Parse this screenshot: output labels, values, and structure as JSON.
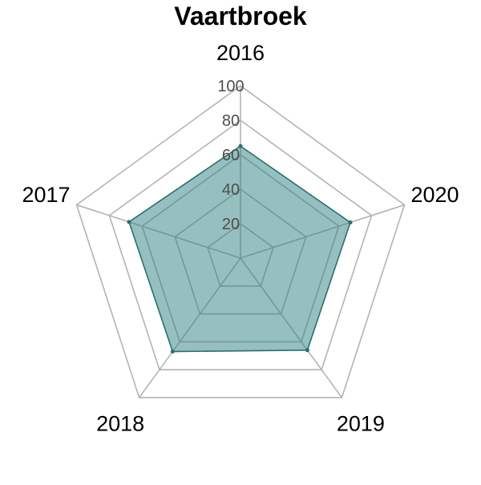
{
  "chart_data": {
    "type": "radar",
    "title": "Vaartbroek",
    "categories": [
      "2016",
      "2020",
      "2019",
      "2018",
      "2017"
    ],
    "values": [
      65,
      67,
      66,
      67,
      68
    ],
    "radial_ticks": [
      "20",
      "40",
      "60",
      "80",
      "100"
    ],
    "rlim": [
      0,
      100
    ],
    "grid": true,
    "fill_color": "#2e8080",
    "line_color": "#2b6f6c",
    "grid_color": "#b3b3b3"
  }
}
